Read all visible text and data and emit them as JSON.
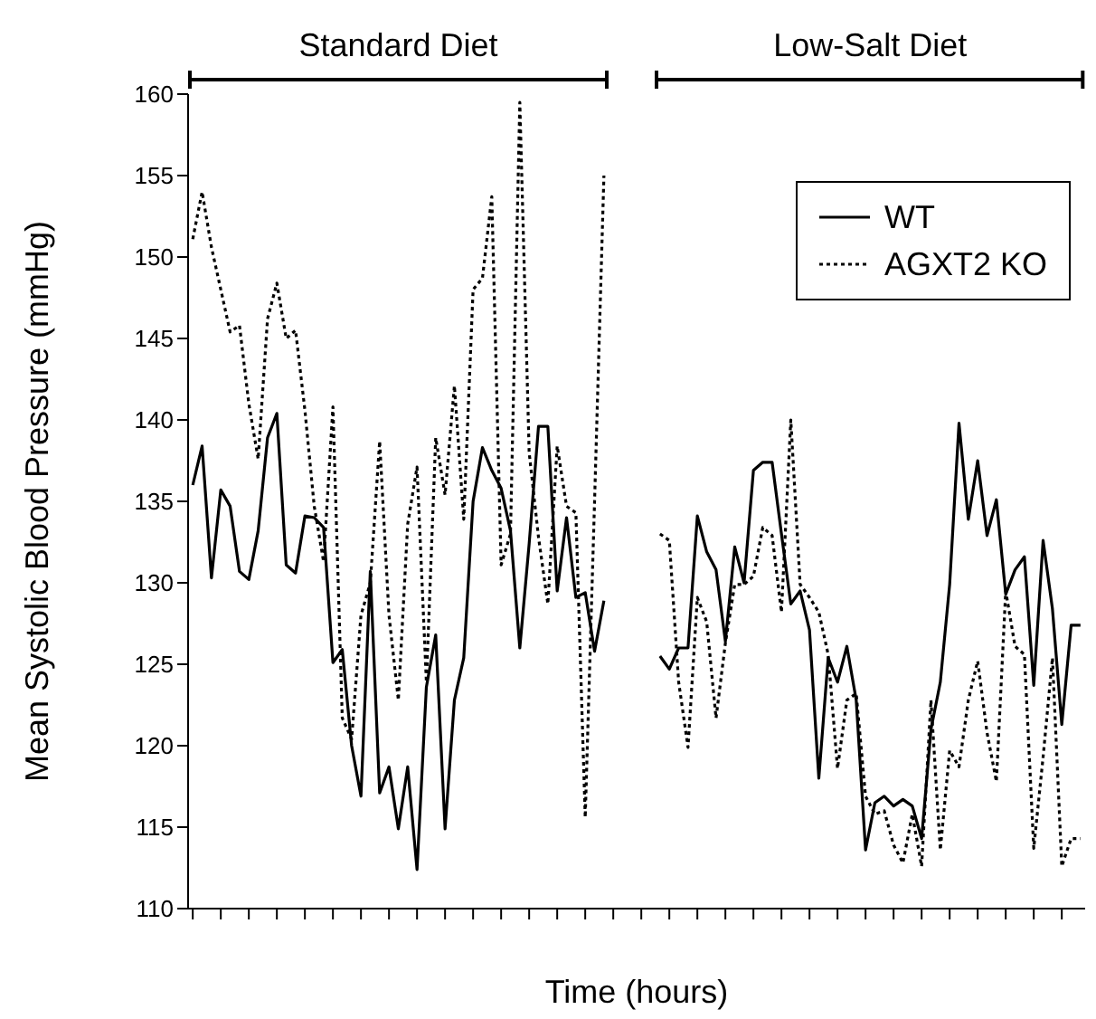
{
  "chart_data": {
    "type": "line",
    "xlabel": "Time (hours)",
    "ylabel": "Mean Systolic Blood Pressure (mmHg)",
    "annotations": [
      "Standard Diet",
      "Low-Salt Diet"
    ],
    "categories": [
      null,
      null,
      null,
      null,
      null,
      null,
      null,
      null,
      null,
      null,
      null,
      null,
      null,
      null,
      null,
      null,
      null,
      null,
      null,
      null,
      null,
      null,
      null,
      null,
      null,
      null,
      null,
      null,
      null,
      null,
      null,
      null,
      null,
      null,
      null,
      null,
      null,
      null,
      null,
      null,
      null,
      null,
      null,
      null,
      null,
      null,
      null,
      null,
      null,
      null,
      null,
      null,
      null,
      null,
      null,
      null,
      null,
      null,
      null,
      null,
      null,
      null,
      null,
      null,
      null,
      null,
      null,
      null,
      null,
      null,
      null,
      null,
      null,
      null,
      null,
      null,
      null,
      null,
      null,
      null,
      null,
      null,
      null,
      null,
      null,
      null,
      null,
      null,
      null,
      null,
      null,
      null,
      null,
      null,
      null,
      null
    ],
    "series": [
      {
        "name": "WT",
        "color": "#000000",
        "line_style": "solid",
        "values": [
          136.0,
          138.4,
          130.3,
          135.7,
          134.7,
          130.7,
          130.2,
          133.2,
          138.9,
          140.4,
          131.1,
          130.6,
          134.1,
          134.0,
          133.4,
          125.1,
          125.9,
          120.0,
          116.9,
          130.7,
          117.1,
          118.7,
          114.9,
          118.7,
          112.4,
          123.6,
          126.8,
          114.9,
          122.8,
          125.4,
          135.0,
          138.3,
          136.9,
          135.8,
          133.2,
          126.0,
          132.4,
          139.6,
          139.6,
          129.5,
          134.0,
          129.1,
          129.4,
          125.8,
          128.9,
          null,
          null,
          null,
          null,
          null,
          125.5,
          124.7,
          126.0,
          126.0,
          134.1,
          131.9,
          130.8,
          126.4,
          132.2,
          130.0,
          136.9,
          137.4,
          137.4,
          133.0,
          128.7,
          129.5,
          127.1,
          118.0,
          125.4,
          123.9,
          126.1,
          122.8,
          113.6,
          116.5,
          116.9,
          116.3,
          116.7,
          116.3,
          114.3,
          121.0,
          123.9,
          129.9,
          139.8,
          133.9,
          137.5,
          132.9,
          135.1,
          129.3,
          130.8,
          131.6,
          123.7,
          132.6,
          128.4,
          121.3,
          127.4,
          127.4
        ]
      },
      {
        "name": "AGXT2 KO",
        "color": "#000000",
        "line_style": "dotted",
        "values": [
          151.1,
          154.0,
          150.6,
          148.0,
          145.4,
          145.8,
          141.0,
          137.6,
          146.2,
          148.4,
          145.0,
          145.5,
          140.6,
          134.7,
          131.3,
          140.8,
          121.7,
          120.4,
          128.0,
          130.0,
          138.7,
          128.0,
          122.8,
          133.6,
          137.1,
          123.9,
          138.9,
          135.4,
          142.1,
          133.9,
          148.0,
          148.7,
          153.7,
          131.1,
          133.0,
          159.5,
          138.0,
          132.8,
          128.7,
          138.4,
          134.7,
          134.3,
          115.6,
          135.0,
          155.0,
          null,
          null,
          null,
          null,
          null,
          133.0,
          132.6,
          123.9,
          119.9,
          129.1,
          127.6,
          121.7,
          126.3,
          129.9,
          129.9,
          130.4,
          133.4,
          132.9,
          128.2,
          140.0,
          129.9,
          129.1,
          128.2,
          125.6,
          118.6,
          122.8,
          123.2,
          116.9,
          115.8,
          116.0,
          113.9,
          112.8,
          115.8,
          112.6,
          122.8,
          113.6,
          119.7,
          118.7,
          122.8,
          125.2,
          120.8,
          117.8,
          129.5,
          126.1,
          125.6,
          113.7,
          119.3,
          125.4,
          112.6,
          114.3,
          114.3
        ]
      }
    ],
    "ylim": [
      110,
      160
    ],
    "yticks": [
      110,
      115,
      120,
      125,
      130,
      135,
      140,
      145,
      150,
      155,
      160
    ],
    "legend": "top right",
    "marker": "none"
  }
}
